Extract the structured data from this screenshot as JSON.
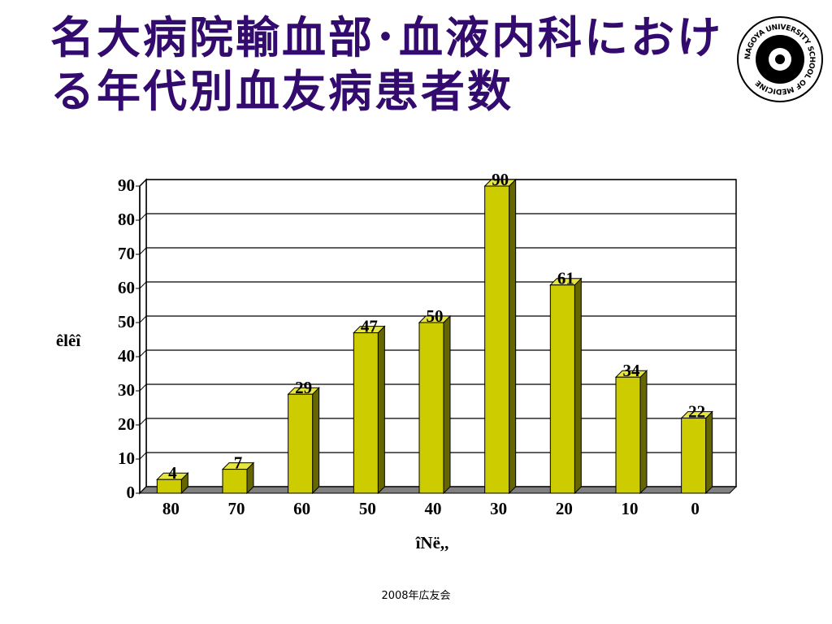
{
  "title": "名大病院輸血部･血液内科における年代別血友病患者数",
  "logo": {
    "text": "NAGOYA UNIVERSITY SCHOOL OF MEDICINE"
  },
  "footer": "2008年広友会",
  "chart_data": {
    "type": "bar",
    "categories": [
      "80",
      "70",
      "60",
      "50",
      "40",
      "30",
      "20",
      "10",
      "0"
    ],
    "values": [
      4,
      7,
      29,
      47,
      50,
      90,
      61,
      34,
      22
    ],
    "color": "#cccc00",
    "ylim": [
      0,
      90
    ],
    "yticks": [
      0,
      10,
      20,
      30,
      40,
      50,
      60,
      70,
      80,
      90
    ],
    "grid": true,
    "y_label": "êlêî",
    "x_label": "îNë,,"
  }
}
